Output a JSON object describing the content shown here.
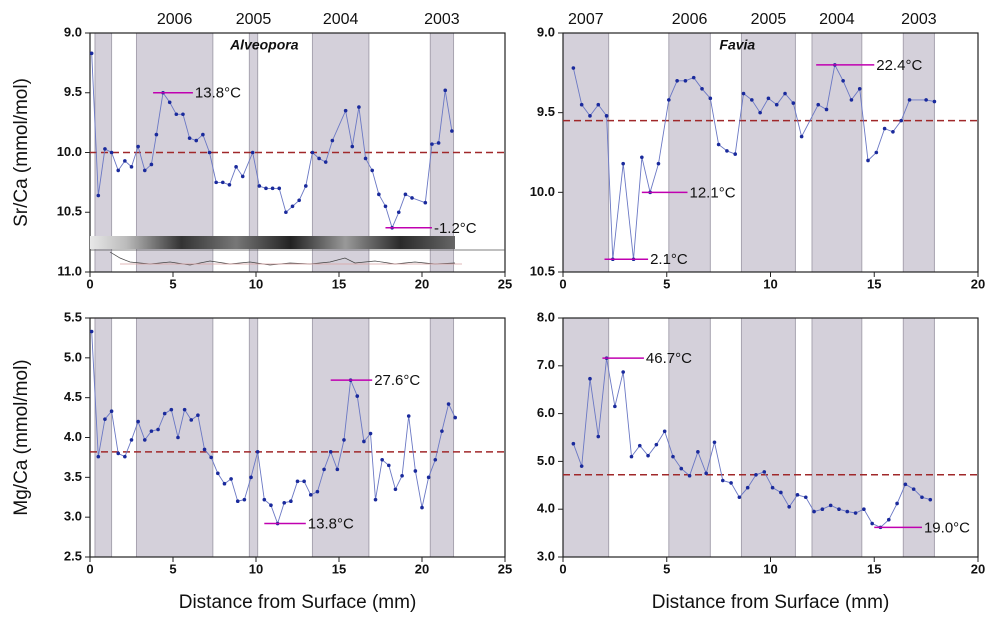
{
  "chart_data": [
    {
      "type": "line",
      "title": "Alveopora",
      "ylabel": "Sr/Ca (mmol/mol)",
      "y_reversed": true,
      "color": "#6b78c4",
      "marker_color": "#1a2a9c",
      "mean": 10.0,
      "mean_color": "#a0282a",
      "xlim": [
        0,
        25
      ],
      "xticks": [
        0,
        5,
        10,
        15,
        20,
        25
      ],
      "ylim": [
        9.0,
        11.0
      ],
      "yticks": [
        {
          "value": 9.0,
          "label": "9.0"
        },
        {
          "value": 9.5,
          "label": "9.5"
        },
        {
          "value": 10.0,
          "label": "10.0"
        },
        {
          "value": 10.5,
          "label": "10.5"
        },
        {
          "value": 11.0,
          "label": "11.0"
        }
      ],
      "bands": [
        {
          "range": [
            0.3,
            1.3
          ]
        },
        {
          "range": [
            2.8,
            7.4
          ],
          "label": "2006"
        },
        {
          "range": [
            9.6,
            10.1
          ],
          "label": "2005"
        },
        {
          "range": [
            13.4,
            16.8
          ],
          "label": "2004"
        },
        {
          "range": [
            20.5,
            21.9
          ],
          "label": "2003"
        }
      ],
      "annotations": [
        {
          "text": "13.8°C",
          "x": [
            3.8,
            6.2
          ],
          "y": 9.5
        },
        {
          "text": "-1.2°C",
          "x": [
            17.8,
            20.6
          ],
          "y": 10.63
        }
      ],
      "x": [
        0.1,
        0.5,
        0.9,
        1.3,
        1.7,
        2.1,
        2.5,
        2.9,
        3.3,
        3.7,
        4.0,
        4.4,
        4.8,
        5.2,
        5.6,
        6.0,
        6.4,
        6.8,
        7.2,
        7.6,
        8.0,
        8.4,
        8.8,
        9.2,
        9.8,
        10.2,
        10.6,
        11.0,
        11.4,
        11.8,
        12.2,
        12.6,
        13.0,
        13.4,
        13.8,
        14.2,
        14.6,
        15.4,
        15.8,
        16.2,
        16.6,
        17.0,
        17.4,
        17.8,
        18.2,
        18.6,
        19.0,
        19.4,
        20.2,
        20.6,
        21.0,
        21.4,
        21.8
      ],
      "values": [
        9.17,
        10.36,
        9.97,
        10.0,
        10.15,
        10.07,
        10.12,
        9.95,
        10.15,
        10.1,
        9.85,
        9.5,
        9.58,
        9.68,
        9.68,
        9.88,
        9.9,
        9.85,
        10.0,
        10.25,
        10.25,
        10.27,
        10.12,
        10.2,
        10.0,
        10.28,
        10.3,
        10.3,
        10.3,
        10.5,
        10.45,
        10.4,
        10.28,
        10.0,
        10.05,
        10.08,
        9.9,
        9.65,
        9.95,
        9.62,
        10.05,
        10.15,
        10.35,
        10.45,
        10.63,
        10.5,
        10.35,
        10.38,
        10.42,
        9.93,
        9.92,
        9.48,
        9.82
      ]
    },
    {
      "type": "line",
      "title": "Favia",
      "y_reversed": true,
      "color": "#6b78c4",
      "marker_color": "#1a2a9c",
      "mean": 9.55,
      "mean_color": "#a0282a",
      "xlim": [
        0,
        20
      ],
      "xticks": [
        0,
        5,
        10,
        15,
        20
      ],
      "ylim": [
        9.0,
        10.5
      ],
      "yticks": [
        {
          "value": 9.0,
          "label": "9.0"
        },
        {
          "value": 9.5,
          "label": "9.5"
        },
        {
          "value": 10.0,
          "label": "10.0"
        },
        {
          "value": 10.5,
          "label": "10.5"
        }
      ],
      "bands": [
        {
          "range": [
            0.0,
            2.2
          ],
          "label": "2007"
        },
        {
          "range": [
            5.1,
            7.1
          ],
          "label": "2006"
        },
        {
          "range": [
            8.6,
            11.2
          ],
          "label": "2005"
        },
        {
          "range": [
            12.0,
            14.4
          ],
          "label": "2004"
        },
        {
          "range": [
            16.4,
            17.9
          ],
          "label": "2003"
        }
      ],
      "annotations": [
        {
          "text": "22.4°C",
          "x": [
            12.2,
            15.0
          ],
          "y": 9.2
        },
        {
          "text": "12.1°C",
          "x": [
            3.8,
            6.0
          ],
          "y": 10.0
        },
        {
          "text": "2.1°C",
          "x": [
            2.0,
            4.1
          ],
          "y": 10.42
        }
      ],
      "x": [
        0.5,
        0.9,
        1.3,
        1.7,
        2.1,
        2.4,
        2.9,
        3.4,
        3.8,
        4.2,
        4.6,
        5.1,
        5.5,
        5.9,
        6.3,
        6.7,
        7.1,
        7.5,
        7.9,
        8.3,
        8.7,
        9.1,
        9.5,
        9.9,
        10.3,
        10.7,
        11.1,
        11.5,
        12.3,
        12.7,
        13.1,
        13.5,
        13.9,
        14.3,
        14.7,
        15.1,
        15.5,
        15.9,
        16.3,
        16.7,
        17.5,
        17.9
      ],
      "values": [
        9.22,
        9.45,
        9.52,
        9.45,
        9.52,
        10.42,
        9.82,
        10.42,
        9.78,
        10.0,
        9.82,
        9.42,
        9.3,
        9.3,
        9.28,
        9.35,
        9.41,
        9.7,
        9.74,
        9.76,
        9.38,
        9.42,
        9.5,
        9.41,
        9.45,
        9.38,
        9.44,
        9.65,
        9.45,
        9.48,
        9.2,
        9.3,
        9.42,
        9.35,
        9.8,
        9.75,
        9.6,
        9.62,
        9.55,
        9.42,
        9.42,
        9.43
      ]
    },
    {
      "type": "line",
      "ylabel": "Mg/Ca (mmol/mol)",
      "xlabel": "Distance from Surface (mm)",
      "color": "#6b78c4",
      "marker_color": "#1a2a9c",
      "mean": 3.82,
      "mean_color": "#a0282a",
      "xlim": [
        0,
        25
      ],
      "xticks": [
        0,
        5,
        10,
        15,
        20,
        25
      ],
      "ylim": [
        2.5,
        5.5
      ],
      "yticks": [
        2.5,
        {
          "value": 3.0,
          "label": "3.0"
        },
        3.5,
        {
          "value": 4.0,
          "label": "4.0"
        },
        4.5,
        {
          "value": 5.0,
          "label": "5.0"
        },
        5.5
      ],
      "bands": [
        {
          "range": [
            0.3,
            1.3
          ]
        },
        {
          "range": [
            2.8,
            7.4
          ]
        },
        {
          "range": [
            9.6,
            10.1
          ]
        },
        {
          "range": [
            13.4,
            16.8
          ]
        },
        {
          "range": [
            20.5,
            21.9
          ]
        }
      ],
      "annotations": [
        {
          "text": "27.6°C",
          "x": [
            14.5,
            17.0
          ],
          "y": 4.72
        },
        {
          "text": "13.8°C",
          "x": [
            10.5,
            13.0
          ],
          "y": 2.92
        }
      ],
      "x": [
        0.1,
        0.5,
        0.9,
        1.3,
        1.7,
        2.1,
        2.5,
        2.9,
        3.3,
        3.7,
        4.1,
        4.5,
        4.9,
        5.3,
        5.7,
        6.1,
        6.5,
        6.9,
        7.3,
        7.7,
        8.1,
        8.5,
        8.9,
        9.3,
        9.7,
        10.1,
        10.5,
        10.9,
        11.3,
        11.7,
        12.1,
        12.5,
        12.9,
        13.3,
        13.7,
        14.1,
        14.5,
        14.9,
        15.3,
        15.7,
        16.1,
        16.5,
        16.9,
        17.2,
        17.6,
        18.0,
        18.4,
        18.8,
        19.2,
        19.6,
        20.0,
        20.4,
        20.8,
        21.2,
        21.6,
        22.0
      ],
      "values": [
        5.33,
        3.76,
        4.23,
        4.33,
        3.8,
        3.76,
        3.97,
        4.2,
        3.97,
        4.08,
        4.1,
        4.3,
        4.35,
        4.0,
        4.35,
        4.22,
        4.28,
        3.85,
        3.75,
        3.55,
        3.42,
        3.48,
        3.2,
        3.22,
        3.5,
        3.82,
        3.22,
        3.15,
        2.92,
        3.18,
        3.2,
        3.45,
        3.45,
        3.28,
        3.32,
        3.6,
        3.82,
        3.6,
        3.97,
        4.72,
        4.52,
        3.95,
        4.05,
        3.22,
        3.72,
        3.65,
        3.35,
        3.52,
        4.27,
        3.58,
        3.12,
        3.5,
        3.72,
        4.08,
        4.42,
        4.25
      ]
    },
    {
      "type": "line",
      "xlabel": "Distance from Surface (mm)",
      "color": "#6b78c4",
      "marker_color": "#1a2a9c",
      "mean": 4.72,
      "mean_color": "#a0282a",
      "xlim": [
        0,
        20
      ],
      "xticks": [
        0,
        5,
        10,
        15,
        20
      ],
      "ylim": [
        3.0,
        8.0
      ],
      "yticks": [
        {
          "value": 3.0,
          "label": "3.0"
        },
        {
          "value": 4.0,
          "label": "4.0"
        },
        {
          "value": 5.0,
          "label": "5.0"
        },
        {
          "value": 6.0,
          "label": "6.0"
        },
        {
          "value": 7.0,
          "label": "7.0"
        },
        {
          "value": 8.0,
          "label": "8.0"
        }
      ],
      "bands": [
        {
          "range": [
            0.0,
            2.2
          ]
        },
        {
          "range": [
            5.1,
            7.1
          ]
        },
        {
          "range": [
            8.6,
            11.2
          ]
        },
        {
          "range": [
            12.0,
            14.4
          ]
        },
        {
          "range": [
            16.4,
            17.9
          ]
        }
      ],
      "annotations": [
        {
          "text": "46.7°C",
          "x": [
            1.9,
            3.9
          ],
          "y": 7.16
        },
        {
          "text": "19.0°C",
          "x": [
            15.0,
            17.3
          ],
          "y": 3.62
        }
      ],
      "x": [
        0.5,
        0.9,
        1.3,
        1.7,
        2.1,
        2.5,
        2.9,
        3.3,
        3.7,
        4.1,
        4.5,
        4.9,
        5.3,
        5.7,
        6.1,
        6.5,
        6.9,
        7.3,
        7.7,
        8.1,
        8.5,
        8.9,
        9.3,
        9.7,
        10.1,
        10.5,
        10.9,
        11.3,
        11.7,
        12.1,
        12.5,
        12.9,
        13.3,
        13.7,
        14.1,
        14.5,
        14.9,
        15.3,
        15.7,
        16.1,
        16.5,
        16.9,
        17.3,
        17.7
      ],
      "values": [
        5.37,
        4.9,
        6.73,
        5.52,
        7.16,
        6.15,
        6.87,
        5.1,
        5.33,
        5.12,
        5.35,
        5.63,
        5.1,
        4.85,
        4.7,
        5.2,
        4.75,
        5.4,
        4.6,
        4.55,
        4.25,
        4.45,
        4.72,
        4.78,
        4.45,
        4.35,
        4.05,
        4.3,
        4.25,
        3.95,
        4.0,
        4.08,
        4.0,
        3.95,
        3.92,
        4.0,
        3.7,
        3.62,
        3.78,
        4.12,
        4.52,
        4.42,
        4.25,
        4.2
      ]
    }
  ]
}
